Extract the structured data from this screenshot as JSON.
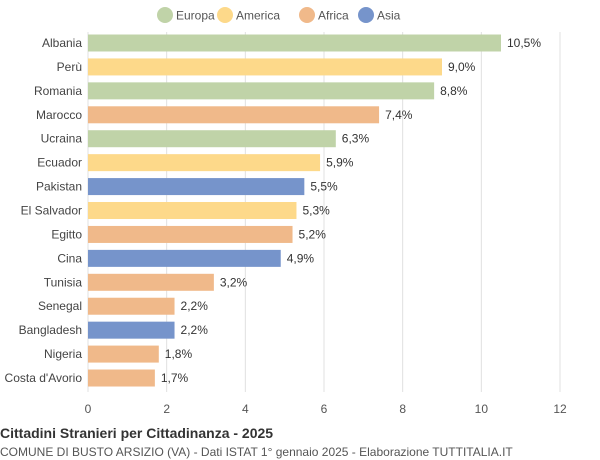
{
  "chart_data": {
    "type": "bar",
    "orientation": "horizontal",
    "title": "Cittadini Stranieri per Cittadinanza - 2025",
    "subtitle": "COMUNE DI BUSTO ARSIZIO (VA) - Dati ISTAT 1° gennaio 2025 - Elaborazione TUTTITALIA.IT",
    "legend": [
      {
        "name": "Europa",
        "color": "#c0d3a8"
      },
      {
        "name": "America",
        "color": "#fdd98a"
      },
      {
        "name": "Africa",
        "color": "#f0b98a"
      },
      {
        "name": "Asia",
        "color": "#7694cb"
      }
    ],
    "legend_position": "top",
    "categories": [
      "Albania",
      "Perù",
      "Romania",
      "Marocco",
      "Ucraina",
      "Ecuador",
      "Pakistan",
      "El Salvador",
      "Egitto",
      "Cina",
      "Tunisia",
      "Senegal",
      "Bangladesh",
      "Nigeria",
      "Costa d'Avorio"
    ],
    "values": [
      10.5,
      9.0,
      8.8,
      7.4,
      6.3,
      5.9,
      5.5,
      5.3,
      5.2,
      4.9,
      3.2,
      2.2,
      2.2,
      1.8,
      1.7
    ],
    "labels": [
      "10,5%",
      "9,0%",
      "8,8%",
      "7,4%",
      "6,3%",
      "5,9%",
      "5,5%",
      "5,3%",
      "5,2%",
      "4,9%",
      "3,2%",
      "2,2%",
      "2,2%",
      "1,8%",
      "1,7%"
    ],
    "groups": [
      "Europa",
      "America",
      "Europa",
      "Africa",
      "Europa",
      "America",
      "Asia",
      "America",
      "Africa",
      "Asia",
      "Africa",
      "Africa",
      "Asia",
      "Africa",
      "Africa"
    ],
    "xlim": [
      0,
      12
    ],
    "xticks": [
      "0",
      "2",
      "4",
      "6",
      "8",
      "10",
      "12"
    ],
    "grid": true
  }
}
